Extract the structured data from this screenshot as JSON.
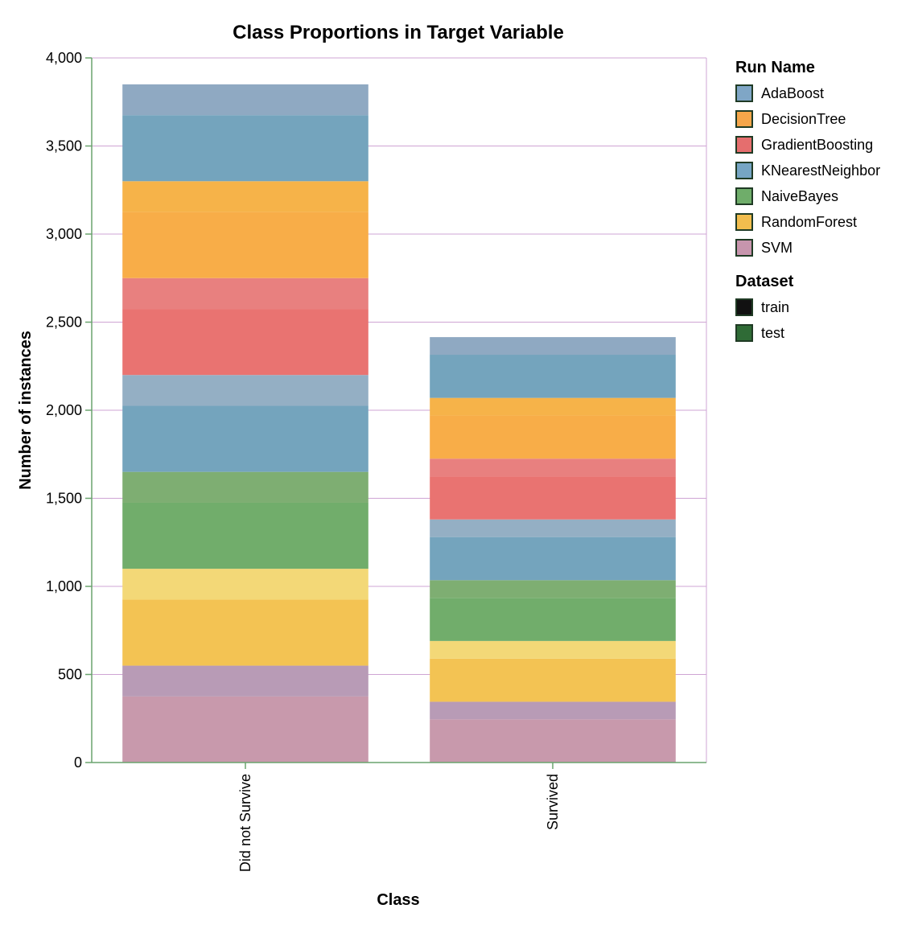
{
  "chart_data": {
    "type": "bar",
    "stacked": true,
    "title": "Class Proportions in Target Variable",
    "xlabel": "Class",
    "ylabel": "Number of instances",
    "categories": [
      "Did not Survive",
      "Survived"
    ],
    "ylim": [
      0,
      4000
    ],
    "yticks": [
      0,
      500,
      1000,
      1500,
      2000,
      2500,
      3000,
      3500,
      4000
    ],
    "ytick_labels": [
      "0",
      "500",
      "1,000",
      "1,500",
      "2,000",
      "2,500",
      "3,000",
      "3,500",
      "4,000"
    ],
    "grid": true,
    "stack_order_bottom_to_top": [
      "SVM",
      "RandomForest",
      "NaiveBayes",
      "KNearestNeighbor",
      "GradientBoosting",
      "DecisionTree",
      "AdaBoost"
    ],
    "series": [
      {
        "name": "SVM",
        "dataset": "train",
        "values": [
          375,
          245
        ]
      },
      {
        "name": "SVM",
        "dataset": "test",
        "values": [
          175,
          100
        ]
      },
      {
        "name": "RandomForest",
        "dataset": "train",
        "values": [
          375,
          245
        ]
      },
      {
        "name": "RandomForest",
        "dataset": "test",
        "values": [
          175,
          100
        ]
      },
      {
        "name": "NaiveBayes",
        "dataset": "train",
        "values": [
          375,
          245
        ]
      },
      {
        "name": "NaiveBayes",
        "dataset": "test",
        "values": [
          175,
          100
        ]
      },
      {
        "name": "KNearestNeighbor",
        "dataset": "train",
        "values": [
          375,
          245
        ]
      },
      {
        "name": "KNearestNeighbor",
        "dataset": "test",
        "values": [
          175,
          100
        ]
      },
      {
        "name": "GradientBoosting",
        "dataset": "train",
        "values": [
          375,
          245
        ]
      },
      {
        "name": "GradientBoosting",
        "dataset": "test",
        "values": [
          175,
          100
        ]
      },
      {
        "name": "DecisionTree",
        "dataset": "train",
        "values": [
          375,
          245
        ]
      },
      {
        "name": "DecisionTree",
        "dataset": "test",
        "values": [
          175,
          100
        ]
      },
      {
        "name": "AdaBoost",
        "dataset": "train",
        "values": [
          375,
          245
        ]
      },
      {
        "name": "AdaBoost",
        "dataset": "test",
        "values": [
          175,
          100
        ]
      }
    ],
    "legend_placement": "right"
  },
  "legend": {
    "run_name": {
      "title": "Run Name",
      "entries": [
        {
          "label": "AdaBoost",
          "color": "#7fa6c6",
          "pattern": "test"
        },
        {
          "label": "DecisionTree",
          "color": "#f5a64a",
          "pattern": "train"
        },
        {
          "label": "GradientBoosting",
          "color": "#e56e6e",
          "pattern": "train"
        },
        {
          "label": "KNearestNeighbor",
          "color": "#76a5c4",
          "pattern": "train"
        },
        {
          "label": "NaiveBayes",
          "color": "#6fad6a",
          "pattern": "train"
        },
        {
          "label": "RandomForest",
          "color": "#f2bd4e",
          "pattern": "train"
        },
        {
          "label": "SVM",
          "color": "#c795ad",
          "pattern": "train"
        }
      ]
    },
    "dataset": {
      "title": "Dataset",
      "entries": [
        {
          "label": "train",
          "color": "#111111"
        },
        {
          "label": "test",
          "color": "#2f6b36"
        }
      ]
    }
  },
  "colors": {
    "SVM": {
      "train": "#c899ac",
      "test": "#b89bb6"
    },
    "RandomForest": {
      "train": "#f3c353",
      "test": "#f3d877"
    },
    "NaiveBayes": {
      "train": "#71ad6b",
      "test": "#7eae72"
    },
    "KNearestNeighbor": {
      "train": "#74a4bd",
      "test": "#94afc4"
    },
    "GradientBoosting": {
      "train": "#e97371",
      "test": "#e8807f"
    },
    "DecisionTree": {
      "train": "#f8ad48",
      "test": "#f6b349"
    },
    "AdaBoost": {
      "train": "#74a4bd",
      "test": "#8fa9c2"
    },
    "axis": "#6aa46e",
    "grid": "#cfa4d4",
    "frame": "#cfa4d4"
  }
}
